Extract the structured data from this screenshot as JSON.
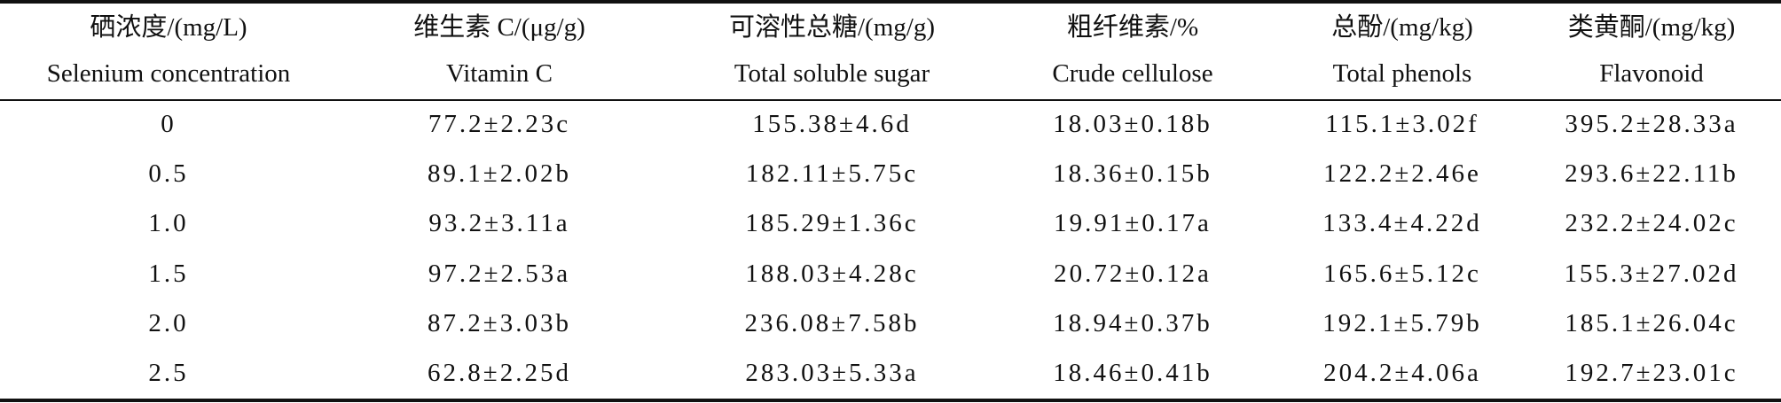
{
  "table": {
    "headers": [
      {
        "zh": "硒浓度/(mg/L)",
        "en": "Selenium concentration"
      },
      {
        "zh": "维生素 C/(μg/g)",
        "en": "Vitamin C"
      },
      {
        "zh": "可溶性总糖/(mg/g)",
        "en": "Total soluble sugar"
      },
      {
        "zh": "粗纤维素/%",
        "en": "Crude cellulose"
      },
      {
        "zh": "总酚/(mg/kg)",
        "en": "Total phenols"
      },
      {
        "zh": "类黄酮/(mg/kg)",
        "en": "Flavonoid"
      }
    ],
    "rows": [
      [
        "0",
        "77.2±2.23c",
        "155.38±4.6d",
        "18.03±0.18b",
        "115.1±3.02f",
        "395.2±28.33a"
      ],
      [
        "0.5",
        "89.1±2.02b",
        "182.11±5.75c",
        "18.36±0.15b",
        "122.2±2.46e",
        "293.6±22.11b"
      ],
      [
        "1.0",
        "93.2±3.11a",
        "185.29±1.36c",
        "19.91±0.17a",
        "133.4±4.22d",
        "232.2±24.02c"
      ],
      [
        "1.5",
        "97.2±2.53a",
        "188.03±4.28c",
        "20.72±0.12a",
        "165.6±5.12c",
        "155.3±27.02d"
      ],
      [
        "2.0",
        "87.2±3.03b",
        "236.08±7.58b",
        "18.94±0.37b",
        "192.1±5.79b",
        "185.1±26.04c"
      ],
      [
        "2.5",
        "62.8±2.25d",
        "283.03±5.33a",
        "18.46±0.41b",
        "204.2±4.06a",
        "192.7±23.01c"
      ]
    ]
  }
}
